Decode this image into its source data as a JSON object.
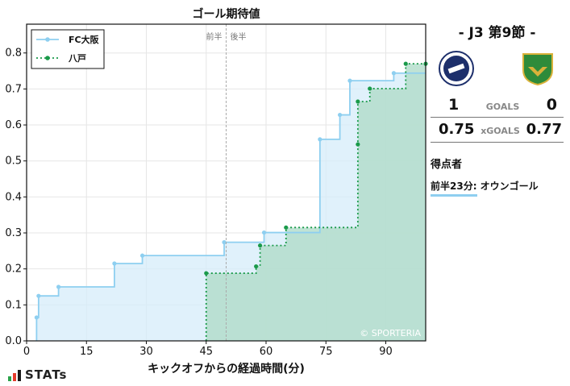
{
  "chart_data": {
    "type": "step-line",
    "title": "ゴール期待値",
    "xlabel": "キックオフからの経過時間(分)",
    "ylabel": "",
    "xlim": [
      0,
      100
    ],
    "ylim": [
      0,
      0.88
    ],
    "xticks": [
      0,
      15,
      30,
      45,
      60,
      75,
      90
    ],
    "yticks": [
      0.0,
      0.1,
      0.2,
      0.3,
      0.4,
      0.5,
      0.6,
      0.7,
      0.8
    ],
    "ytick_labels": [
      "0.0",
      "0.1",
      "0.2",
      "0.3",
      "0.4",
      "0.5",
      "0.6",
      "0.7",
      "0.8"
    ],
    "halftime_x": 50,
    "halftime_labels": [
      "前半",
      "後半"
    ],
    "legend_position": "top-left",
    "watermark": "© SPORTERIA",
    "grid": true,
    "series": [
      {
        "name": "FC大阪",
        "color": "#8ecff0",
        "fill": "#d6ecfa",
        "line_style": "solid",
        "points": [
          [
            2.5,
            0.065
          ],
          [
            3,
            0.125
          ],
          [
            8,
            0.15
          ],
          [
            22,
            0.215
          ],
          [
            29,
            0.237
          ],
          [
            49.5,
            0.274
          ],
          [
            59.5,
            0.301
          ],
          [
            73.5,
            0.56
          ],
          [
            78.5,
            0.628
          ],
          [
            81,
            0.723
          ],
          [
            92,
            0.744
          ]
        ],
        "end_x": 100
      },
      {
        "name": "八戸",
        "color": "#1a9a4a",
        "fill": "#b0dcc9",
        "line_style": "dotted",
        "points": [
          [
            45,
            0.188
          ],
          [
            57.5,
            0.207
          ],
          [
            58.5,
            0.265
          ],
          [
            65,
            0.315
          ],
          [
            83,
            0.546
          ],
          [
            83,
            0.665
          ],
          [
            86,
            0.701
          ],
          [
            95,
            0.77
          ],
          [
            100,
            0.77
          ]
        ],
        "end_x": 100
      }
    ]
  },
  "match": {
    "title": "- J3 第9節 -",
    "home_goals": "1",
    "away_goals": "0",
    "goals_label": "GOALS",
    "home_xg": "0.75",
    "away_xg": "0.77",
    "xg_label": "xGOALS",
    "home_crest_color": "#1d2f6b",
    "away_crest_color": "#2e8b3a"
  },
  "scorers": {
    "title": "得点者",
    "items": [
      {
        "text": "前半23分: オウンゴール"
      }
    ]
  },
  "branding": {
    "stats_logo": "STATs"
  }
}
